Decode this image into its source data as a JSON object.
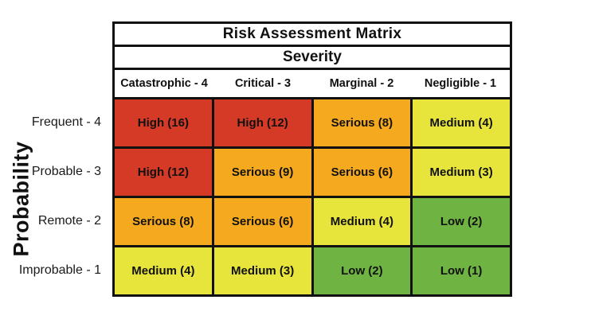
{
  "title": "Risk Assessment Matrix",
  "axis": {
    "severity": "Severity",
    "probability": "Probability"
  },
  "matrix": {
    "columns": [
      "Catastrophic - 4",
      "Critical - 3",
      "Marginal - 2",
      "Negligible - 1"
    ],
    "rows": [
      {
        "label": "Frequent - 4",
        "cells": [
          {
            "text": "High (16)",
            "level": "high"
          },
          {
            "text": "High (12)",
            "level": "high"
          },
          {
            "text": "Serious (8)",
            "level": "serious"
          },
          {
            "text": "Medium (4)",
            "level": "medium"
          }
        ]
      },
      {
        "label": "Probable - 3",
        "cells": [
          {
            "text": "High (12)",
            "level": "high"
          },
          {
            "text": "Serious (9)",
            "level": "serious"
          },
          {
            "text": "Serious (6)",
            "level": "serious"
          },
          {
            "text": "Medium (3)",
            "level": "medium"
          }
        ]
      },
      {
        "label": "Remote - 2",
        "cells": [
          {
            "text": "Serious (8)",
            "level": "serious"
          },
          {
            "text": "Serious (6)",
            "level": "serious"
          },
          {
            "text": "Medium (4)",
            "level": "medium"
          },
          {
            "text": "Low (2)",
            "level": "low"
          }
        ]
      },
      {
        "label": "Improbable - 1",
        "cells": [
          {
            "text": "Medium (4)",
            "level": "medium"
          },
          {
            "text": "Medium (3)",
            "level": "medium"
          },
          {
            "text": "Low (2)",
            "level": "low"
          },
          {
            "text": "Low (1)",
            "level": "low"
          }
        ]
      }
    ]
  },
  "colors": {
    "high": "#d53a27",
    "serious": "#f5a91f",
    "medium": "#e7e43c",
    "low": "#6fb342",
    "border": "#111111",
    "text": "#111111"
  },
  "chart_data": {
    "type": "heatmap",
    "title": "Risk Assessment Matrix",
    "xlabel": "Severity",
    "ylabel": "Probability",
    "columns": [
      "Catastrophic - 4",
      "Critical - 3",
      "Marginal - 2",
      "Negligible - 1"
    ],
    "rows": [
      "Frequent - 4",
      "Probable - 3",
      "Remote - 2",
      "Improbable - 1"
    ],
    "values": [
      [
        16,
        12,
        8,
        4
      ],
      [
        12,
        9,
        6,
        3
      ],
      [
        8,
        6,
        4,
        2
      ],
      [
        4,
        3,
        2,
        1
      ]
    ],
    "ratings": [
      [
        "High",
        "High",
        "Serious",
        "Medium"
      ],
      [
        "High",
        "Serious",
        "Serious",
        "Medium"
      ],
      [
        "Serious",
        "Serious",
        "Medium",
        "Low"
      ],
      [
        "Medium",
        "Medium",
        "Low",
        "Low"
      ]
    ],
    "legend": "none",
    "grid": "on"
  }
}
